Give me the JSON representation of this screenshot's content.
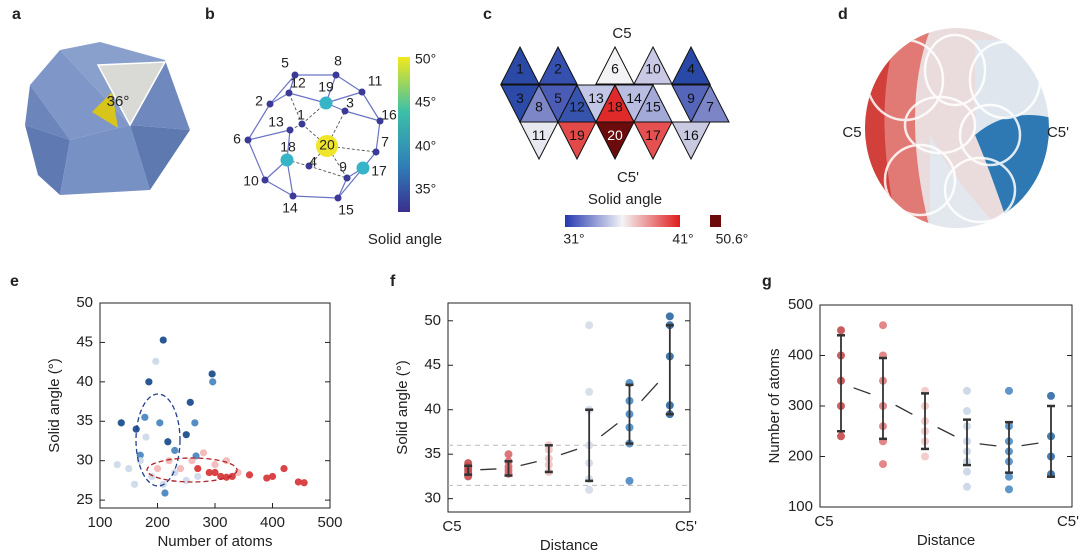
{
  "panel_labels": [
    "a",
    "b",
    "c",
    "d",
    "e",
    "f",
    "g"
  ],
  "panel_a": {
    "angle_label": "36°"
  },
  "panel_b": {
    "nodes": [
      "1",
      "2",
      "3",
      "4",
      "5",
      "6",
      "7",
      "8",
      "9",
      "10",
      "11",
      "12",
      "13",
      "14",
      "15",
      "16",
      "17",
      "18",
      "19",
      "20"
    ],
    "colorbar_ticks": [
      "35°",
      "40°",
      "45°",
      "50°"
    ],
    "colorbar_title": "Solid angle"
  },
  "panel_c": {
    "faces": [
      "1",
      "2",
      "3",
      "4",
      "5",
      "6",
      "7",
      "8",
      "9",
      "10",
      "11",
      "12",
      "13",
      "14",
      "15",
      "16",
      "17",
      "18",
      "19",
      "20"
    ],
    "top_label": "C5",
    "bottom_label": "C5'",
    "colorbar_title": "Solid angle",
    "colorbar_labels": [
      "31°",
      "41°",
      "50.6°"
    ]
  },
  "panel_d": {
    "left_label": "C5",
    "right_label": "C5'"
  },
  "chart_data": [
    {
      "type": "scatter",
      "xlabel": "Number of atoms",
      "ylabel": "Solid angle (°)",
      "xlim": [
        100,
        500
      ],
      "ylim": [
        24,
        50
      ],
      "xticks": [
        100,
        200,
        300,
        400,
        500
      ],
      "yticks": [
        25,
        30,
        35,
        40,
        45,
        50
      ],
      "series": [
        {
          "color": "#1d4f8e",
          "x": [
            210,
            137,
            295,
            185,
            257,
            163,
            250,
            218
          ],
          "values": [
            45.3,
            34.8,
            41,
            40,
            37.4,
            34,
            33.3,
            32.4
          ]
        },
        {
          "color": "#4c88c2",
          "x": [
            296,
            170,
            204,
            230,
            267,
            213,
            265,
            178
          ],
          "values": [
            40,
            30.7,
            34.8,
            31.3,
            30.6,
            25.9,
            34.8,
            35.5
          ]
        },
        {
          "color": "#cfdaea",
          "x": [
            197,
            130,
            150,
            170,
            190,
            210,
            230,
            250,
            270,
            180,
            160
          ],
          "values": [
            42.6,
            29.5,
            29,
            30,
            28,
            27,
            28.5,
            27.5,
            28,
            33,
            27
          ]
        },
        {
          "color": "#f1b9b8",
          "x": [
            240,
            260,
            280,
            300,
            320,
            340,
            220,
            200
          ],
          "values": [
            29,
            30,
            31,
            29.5,
            30,
            28.5,
            30,
            29
          ]
        },
        {
          "color": "#d83a3c",
          "x": [
            270,
            290,
            310,
            330,
            360,
            390,
            400,
            420,
            445,
            455,
            300,
            320
          ],
          "values": [
            29,
            28.5,
            28,
            28,
            28.2,
            27.8,
            28,
            29,
            27.3,
            27.2,
            28.5,
            27.9
          ]
        }
      ]
    },
    {
      "type": "dot_errorbar",
      "xlabel": "Distance",
      "ylabel": "Solid angle (°)",
      "x_end_labels": [
        "C5",
        "C5'"
      ],
      "ylim": [
        28.5,
        52
      ],
      "yticks": [
        30,
        35,
        40,
        45,
        50
      ],
      "reference_lines": [
        36,
        31.5
      ],
      "colors": [
        "#c44a4c",
        "#d9676a",
        "#f0c2c0",
        "#d3dbe9",
        "#4a88c2",
        "#2e66a0"
      ],
      "means": [
        33.2,
        33.4,
        34.5,
        36,
        39.5,
        44.5
      ],
      "errors": [
        0.5,
        0.8,
        1.5,
        4,
        3.3,
        5
      ],
      "points": [
        [
          32.5,
          33,
          33.3,
          33.6,
          34
        ],
        [
          32.8,
          33.2,
          33.6,
          34.2,
          35
        ],
        [
          33,
          33.8,
          34.5,
          35.5,
          36
        ],
        [
          31,
          32.2,
          34,
          36,
          40,
          42,
          49.5
        ],
        [
          32,
          36.2,
          38,
          39.5,
          41,
          43
        ],
        [
          39.5,
          40.5,
          46,
          49.5,
          50.5
        ]
      ]
    },
    {
      "type": "dot_errorbar",
      "xlabel": "Distance",
      "ylabel": "Number of atoms",
      "x_end_labels": [
        "C5",
        "C5'"
      ],
      "ylim": [
        100,
        500
      ],
      "yticks": [
        100,
        200,
        300,
        400,
        500
      ],
      "colors": [
        "#c44a4c",
        "#e07a7c",
        "#f2c6c4",
        "#c9d6e8",
        "#4f8cc4",
        "#2f6aa3"
      ],
      "means": [
        345,
        315,
        270,
        228,
        218,
        230
      ],
      "errors": [
        95,
        80,
        55,
        45,
        50,
        70
      ],
      "points": [
        [
          240,
          300,
          350,
          400,
          450
        ],
        [
          185,
          230,
          260,
          300,
          350,
          400,
          460
        ],
        [
          200,
          230,
          250,
          270,
          300,
          330
        ],
        [
          140,
          170,
          190,
          210,
          230,
          260,
          290,
          330
        ],
        [
          135,
          160,
          190,
          210,
          230,
          260,
          330
        ],
        [
          165,
          200,
          240,
          320
        ]
      ]
    }
  ]
}
